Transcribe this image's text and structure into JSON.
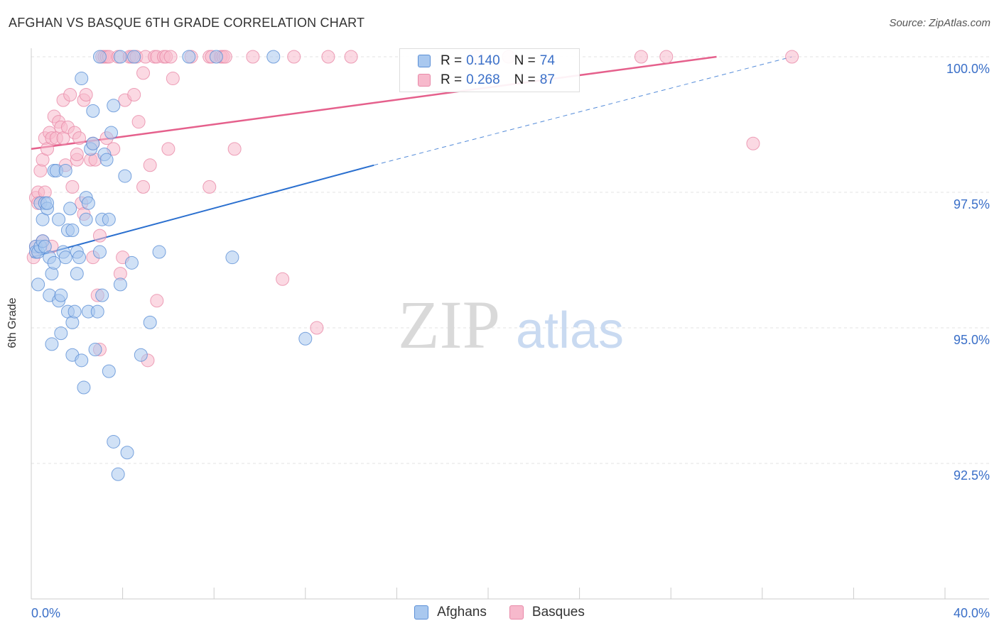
{
  "header": {
    "title": "AFGHAN VS BASQUE 6TH GRADE CORRELATION CHART",
    "source": "Source: ZipAtlas.com"
  },
  "watermark": {
    "zip": "ZIP",
    "atlas": "atlas"
  },
  "stats": {
    "afghans": {
      "r_label": "R =",
      "r": "0.140",
      "n_label": "N =",
      "n": "74"
    },
    "basques": {
      "r_label": "R =",
      "r": "0.268",
      "n_label": "N =",
      "n": "87"
    }
  },
  "legend": {
    "afghans": "Afghans",
    "basques": "Basques"
  },
  "colors": {
    "afghans_fill": "#a9c8ef",
    "afghans_stroke": "#5b8fd6",
    "afghans_line": "#2a6fcf",
    "basques_fill": "#f7b9cc",
    "basques_stroke": "#e889a8",
    "basques_line": "#e5608c",
    "tick_label": "#3a6fc8",
    "grid": "#e3e3e3"
  },
  "chart_data": {
    "type": "scatter",
    "title": "AFGHAN VS BASQUE 6TH GRADE CORRELATION CHART",
    "xlabel": "",
    "ylabel": "6th Grade",
    "xlim": [
      0,
      40
    ],
    "ylim": [
      90.3,
      100.5
    ],
    "x_tick_labels": [
      {
        "value": 0,
        "label": "0.0%"
      },
      {
        "value": 40,
        "label": "40.0%"
      }
    ],
    "y_ticks": [
      {
        "value": 92.5,
        "label": "92.5%"
      },
      {
        "value": 95.0,
        "label": "95.0%"
      },
      {
        "value": 97.5,
        "label": "97.5%"
      },
      {
        "value": 100.0,
        "label": "100.0%"
      }
    ],
    "series": [
      {
        "name": "Afghans",
        "trend": {
          "x0": 0,
          "y0": 96.3,
          "x1": 15,
          "y1": 98.0,
          "dashed_to": [
            33.3,
            100.0
          ]
        },
        "points": [
          [
            0.2,
            96.5
          ],
          [
            0.2,
            96.4
          ],
          [
            0.3,
            95.8
          ],
          [
            0.3,
            96.4
          ],
          [
            0.4,
            96.5
          ],
          [
            0.4,
            97.3
          ],
          [
            0.5,
            97.0
          ],
          [
            0.5,
            96.6
          ],
          [
            0.6,
            96.5
          ],
          [
            0.6,
            97.3
          ],
          [
            0.7,
            97.2
          ],
          [
            0.7,
            97.3
          ],
          [
            0.8,
            96.3
          ],
          [
            0.8,
            95.6
          ],
          [
            0.9,
            94.7
          ],
          [
            0.9,
            96.0
          ],
          [
            1.0,
            96.2
          ],
          [
            1.0,
            97.9
          ],
          [
            1.1,
            97.9
          ],
          [
            1.2,
            95.5
          ],
          [
            1.2,
            97.0
          ],
          [
            1.3,
            95.6
          ],
          [
            1.3,
            94.9
          ],
          [
            1.4,
            96.4
          ],
          [
            1.5,
            97.9
          ],
          [
            1.5,
            96.3
          ],
          [
            1.6,
            96.8
          ],
          [
            1.6,
            95.3
          ],
          [
            1.7,
            97.2
          ],
          [
            1.8,
            96.8
          ],
          [
            1.8,
            95.1
          ],
          [
            1.8,
            94.5
          ],
          [
            1.9,
            95.3
          ],
          [
            2.0,
            96.0
          ],
          [
            2.0,
            96.4
          ],
          [
            2.1,
            96.3
          ],
          [
            2.2,
            99.6
          ],
          [
            2.2,
            94.4
          ],
          [
            2.3,
            93.9
          ],
          [
            2.4,
            97.0
          ],
          [
            2.4,
            97.4
          ],
          [
            2.5,
            95.3
          ],
          [
            2.5,
            97.3
          ],
          [
            2.6,
            98.3
          ],
          [
            2.7,
            98.4
          ],
          [
            2.7,
            99.0
          ],
          [
            2.8,
            94.6
          ],
          [
            2.9,
            95.3
          ],
          [
            3.0,
            100.0
          ],
          [
            3.0,
            96.4
          ],
          [
            3.1,
            97.0
          ],
          [
            3.1,
            95.6
          ],
          [
            3.2,
            98.2
          ],
          [
            3.3,
            98.1
          ],
          [
            3.4,
            97.0
          ],
          [
            3.4,
            94.2
          ],
          [
            3.5,
            98.6
          ],
          [
            3.6,
            99.1
          ],
          [
            3.6,
            92.9
          ],
          [
            3.8,
            92.3
          ],
          [
            3.9,
            100.0
          ],
          [
            3.9,
            95.8
          ],
          [
            4.1,
            97.8
          ],
          [
            4.2,
            92.7
          ],
          [
            4.4,
            96.2
          ],
          [
            4.5,
            100.0
          ],
          [
            4.8,
            94.5
          ],
          [
            5.2,
            95.1
          ],
          [
            5.6,
            96.4
          ],
          [
            6.9,
            100.0
          ],
          [
            8.1,
            100.0
          ],
          [
            8.8,
            96.3
          ],
          [
            10.6,
            100.0
          ],
          [
            12.0,
            94.8
          ]
        ]
      },
      {
        "name": "Basques",
        "trend": {
          "x0": 0,
          "y0": 98.3,
          "x1": 30,
          "y1": 100.0
        },
        "points": [
          [
            0.1,
            96.3
          ],
          [
            0.2,
            96.5
          ],
          [
            0.2,
            97.4
          ],
          [
            0.3,
            97.5
          ],
          [
            0.3,
            97.3
          ],
          [
            0.4,
            97.9
          ],
          [
            0.5,
            98.1
          ],
          [
            0.5,
            96.6
          ],
          [
            0.6,
            98.5
          ],
          [
            0.6,
            97.5
          ],
          [
            0.7,
            98.3
          ],
          [
            0.8,
            98.6
          ],
          [
            0.9,
            98.5
          ],
          [
            0.9,
            96.5
          ],
          [
            1.0,
            98.9
          ],
          [
            1.1,
            98.5
          ],
          [
            1.2,
            98.8
          ],
          [
            1.3,
            98.7
          ],
          [
            1.4,
            98.5
          ],
          [
            1.4,
            99.2
          ],
          [
            1.5,
            98.0
          ],
          [
            1.6,
            98.7
          ],
          [
            1.7,
            99.3
          ],
          [
            1.8,
            97.6
          ],
          [
            1.9,
            98.6
          ],
          [
            2.0,
            98.1
          ],
          [
            2.0,
            98.2
          ],
          [
            2.1,
            98.5
          ],
          [
            2.2,
            97.3
          ],
          [
            2.3,
            97.1
          ],
          [
            2.3,
            99.2
          ],
          [
            2.4,
            99.3
          ],
          [
            2.6,
            98.1
          ],
          [
            2.7,
            96.3
          ],
          [
            2.7,
            98.4
          ],
          [
            2.8,
            98.1
          ],
          [
            2.9,
            95.6
          ],
          [
            3.0,
            96.7
          ],
          [
            3.0,
            94.6
          ],
          [
            3.1,
            100.0
          ],
          [
            3.2,
            100.0
          ],
          [
            3.3,
            100.0
          ],
          [
            3.3,
            98.5
          ],
          [
            3.4,
            100.0
          ],
          [
            3.6,
            98.3
          ],
          [
            3.8,
            100.0
          ],
          [
            3.9,
            96.0
          ],
          [
            4.0,
            96.3
          ],
          [
            4.1,
            99.2
          ],
          [
            4.3,
            100.0
          ],
          [
            4.4,
            100.0
          ],
          [
            4.5,
            99.3
          ],
          [
            4.6,
            100.0
          ],
          [
            4.7,
            98.8
          ],
          [
            4.9,
            97.6
          ],
          [
            4.9,
            99.7
          ],
          [
            5.0,
            100.0
          ],
          [
            5.1,
            94.4
          ],
          [
            5.2,
            98.0
          ],
          [
            5.4,
            100.0
          ],
          [
            5.5,
            100.0
          ],
          [
            5.5,
            95.5
          ],
          [
            5.8,
            100.0
          ],
          [
            5.9,
            100.0
          ],
          [
            6.0,
            98.3
          ],
          [
            6.1,
            100.0
          ],
          [
            6.2,
            99.6
          ],
          [
            7.0,
            100.0
          ],
          [
            7.8,
            97.6
          ],
          [
            7.8,
            100.0
          ],
          [
            7.9,
            100.0
          ],
          [
            8.3,
            100.0
          ],
          [
            8.4,
            100.0
          ],
          [
            8.5,
            100.0
          ],
          [
            8.9,
            98.3
          ],
          [
            9.7,
            100.0
          ],
          [
            11.0,
            95.9
          ],
          [
            11.5,
            100.0
          ],
          [
            12.5,
            95.0
          ],
          [
            13.0,
            100.0
          ],
          [
            14.0,
            100.0
          ],
          [
            19.5,
            100.0
          ],
          [
            20.9,
            100.0
          ],
          [
            26.7,
            100.0
          ],
          [
            27.8,
            100.0
          ],
          [
            31.6,
            98.4
          ],
          [
            33.3,
            100.0
          ]
        ]
      }
    ]
  }
}
